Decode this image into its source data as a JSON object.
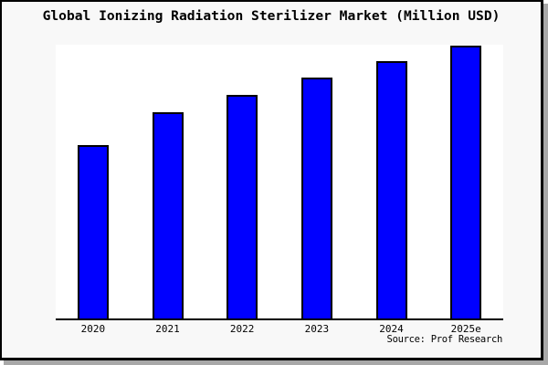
{
  "window": {
    "background": "#f8f8f8",
    "plot_background": "#ffffff",
    "border_color": "#000000",
    "shadow_color": "#a8a8a8",
    "text_color": "#000000"
  },
  "chart_data": {
    "type": "bar",
    "title": "Global Ionizing Radiation Sterilizer Market (Million USD)",
    "categories": [
      "2020",
      "2021",
      "2022",
      "2023",
      "2024",
      "2025e"
    ],
    "values": [
      190,
      226,
      245,
      264,
      282,
      299
    ],
    "ylim": [
      0,
      302
    ],
    "xlabel": "",
    "ylabel": "",
    "grid": false,
    "legend": false,
    "y_axis_ticks_visible": false,
    "note": "No y-axis scale shown in image; values are relative bar heights",
    "bar_color": "#0000ff",
    "bar_border_color": "#000000"
  },
  "source": {
    "label": "Source: Prof Research"
  }
}
